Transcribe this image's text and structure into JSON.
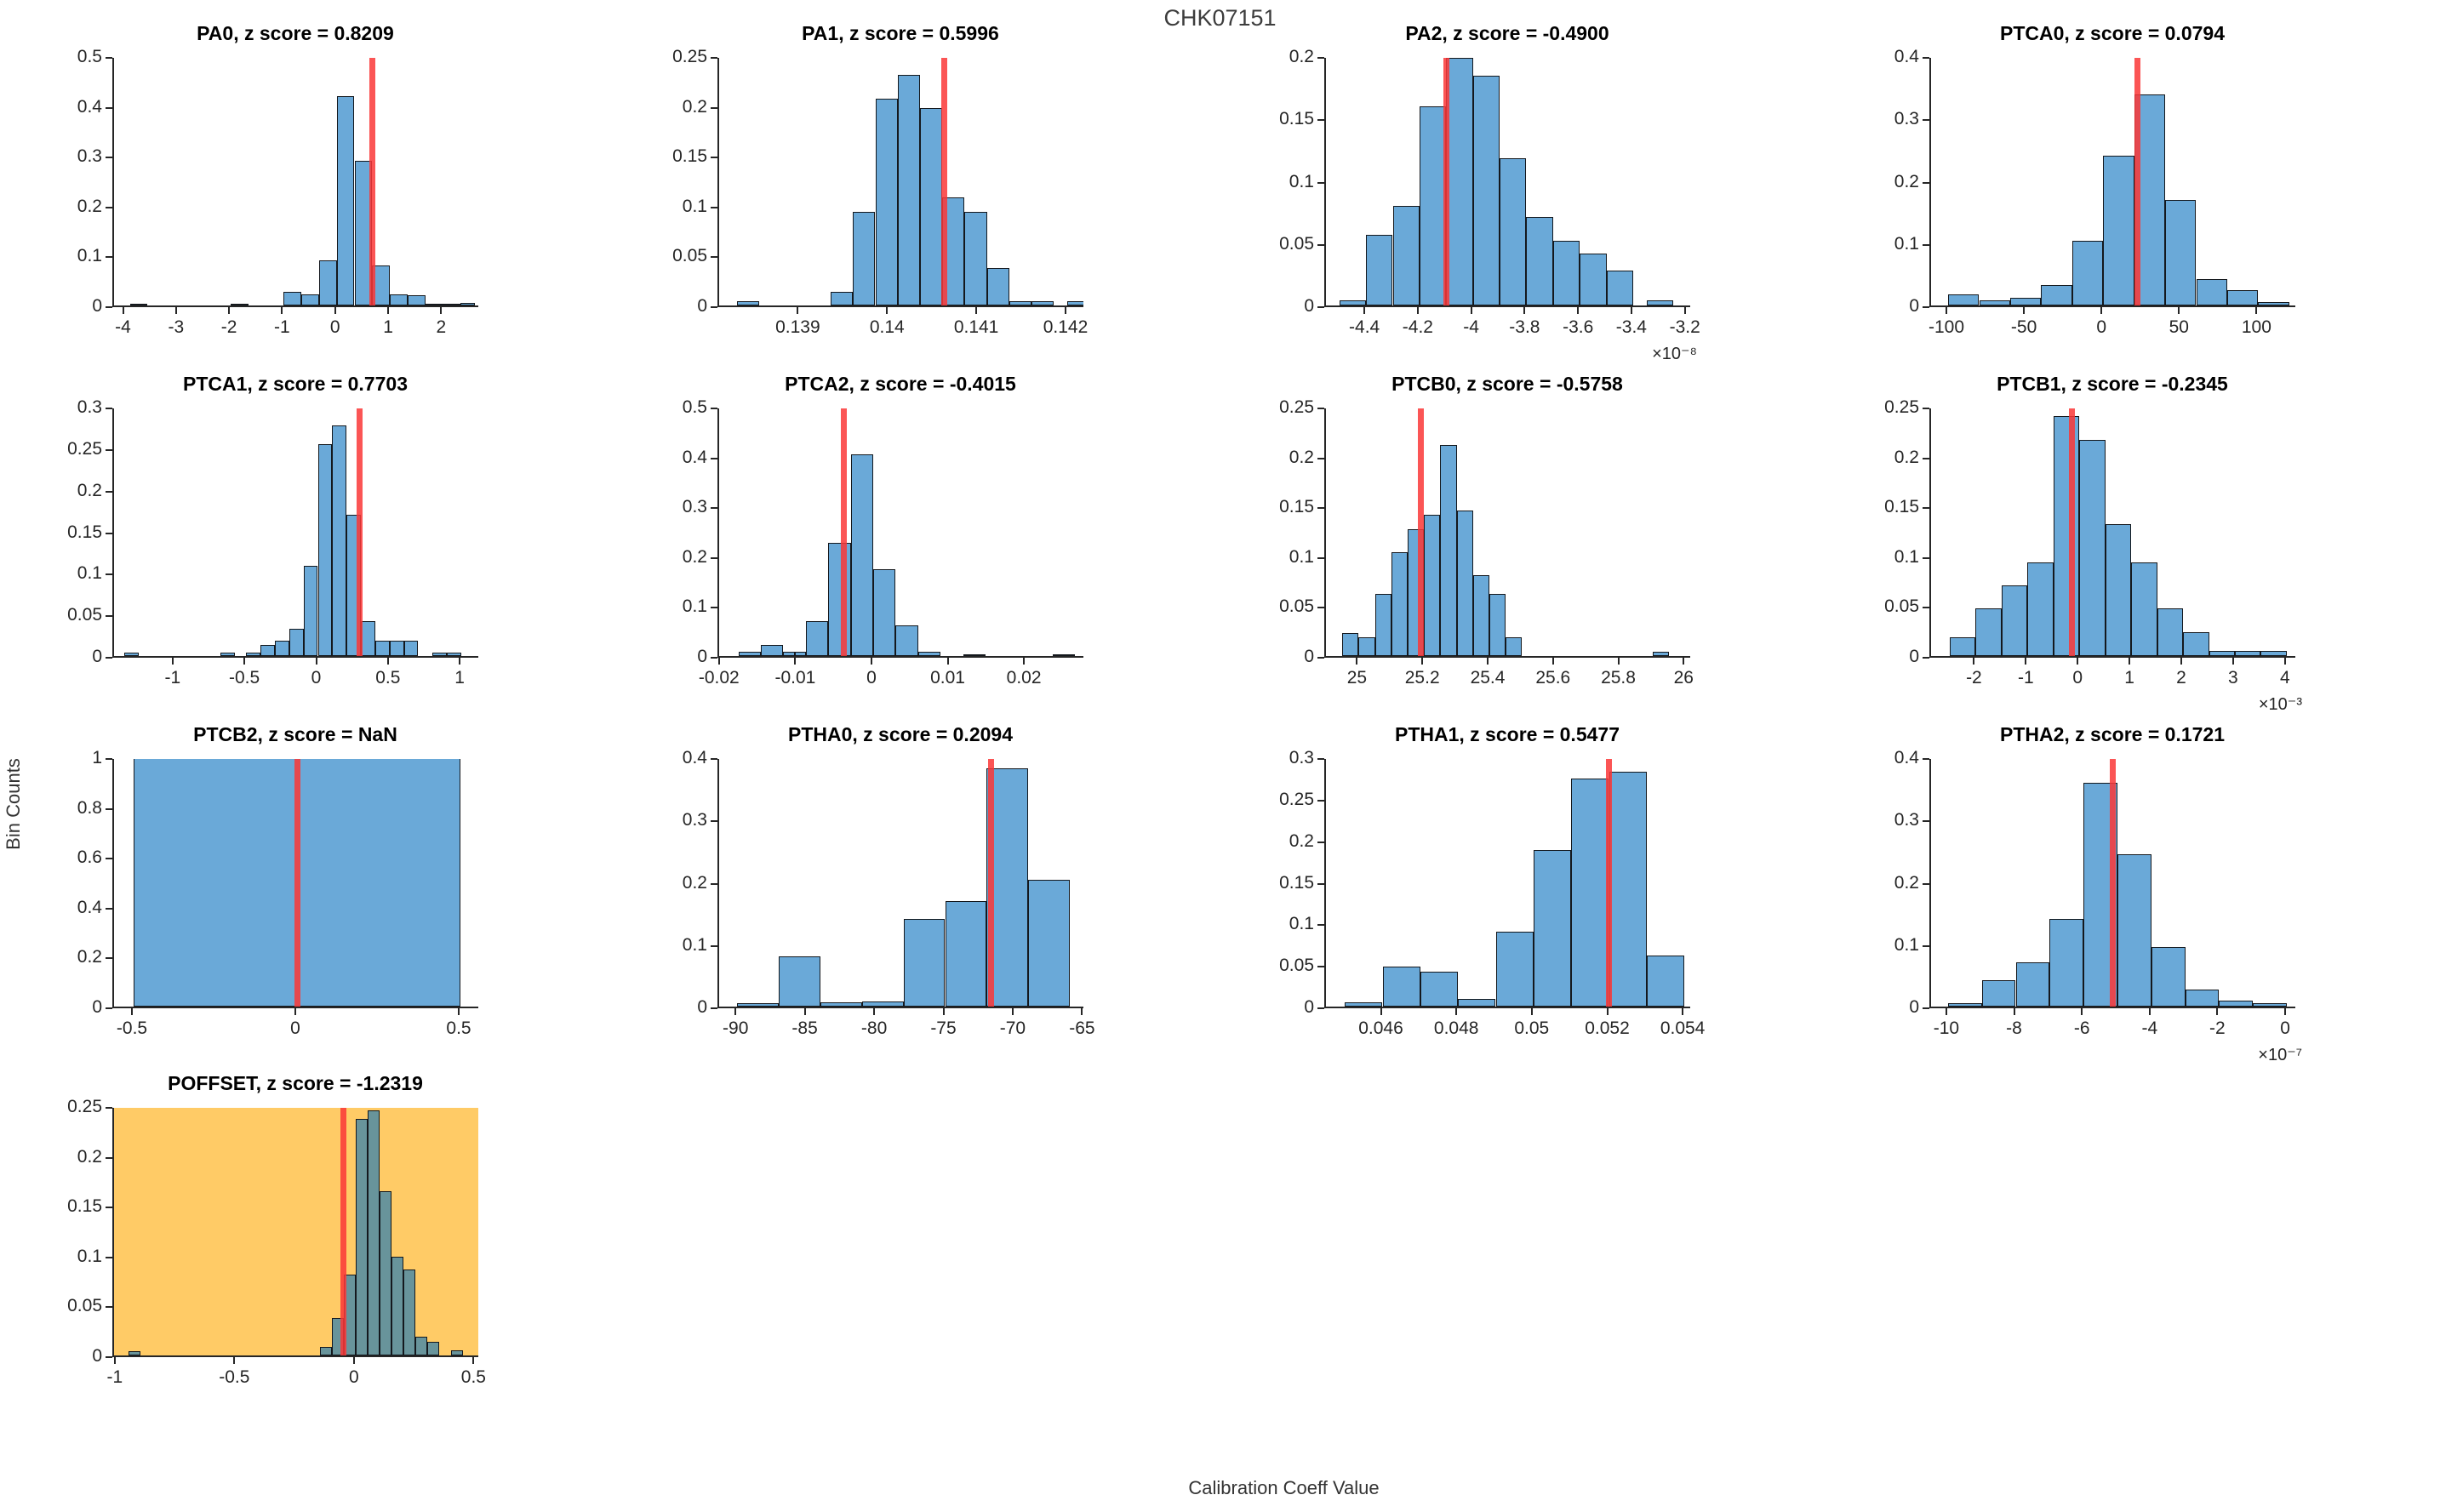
{
  "figure": {
    "title": "CHK07151",
    "ylabel": "Bin Counts",
    "xlabel": "Calibration Coeff Value"
  },
  "style": {
    "bar_color": "#6AA9D8",
    "bar_edge": "#14181d",
    "red_line": "#FA3737",
    "highlight_bg": "#FFCB66",
    "highlight_bar_color": "#68949B",
    "axis_color": "#262626",
    "text_color": "#262626"
  },
  "chart_data": [
    {
      "type": "bar",
      "name": "PA0",
      "title": "PA0, z score = 0.8209",
      "xlim": [
        -4.2,
        2.7
      ],
      "ylim": [
        0,
        0.5
      ],
      "ytick_vals": [
        0,
        0.1,
        0.2,
        0.3,
        0.4,
        0.5
      ],
      "ytick_labels": [
        "0",
        "0.1",
        "0.2",
        "0.3",
        "0.4",
        "0.5"
      ],
      "xtick_vals": [
        -4,
        -3,
        -2,
        -1,
        0,
        1,
        2
      ],
      "xtick_labels": [
        "-4",
        "-3",
        "-2",
        "-1",
        "0",
        "1",
        "2"
      ],
      "x_exponent": "",
      "red_line_x": 0.67,
      "highlight": false,
      "bars": [
        [
          -3.9,
          -3.567,
          0.004
        ],
        [
          -2.0,
          -1.667,
          0.004
        ],
        [
          -1.0,
          -0.667,
          0.027
        ],
        [
          -0.667,
          -0.333,
          0.022
        ],
        [
          -0.333,
          0,
          0.09
        ],
        [
          0,
          0.333,
          0.42
        ],
        [
          0.333,
          0.667,
          0.29
        ],
        [
          0.667,
          1.0,
          0.08
        ],
        [
          1.0,
          1.333,
          0.022
        ],
        [
          1.333,
          1.667,
          0.02
        ],
        [
          1.667,
          2.0,
          0.004
        ],
        [
          2.0,
          2.333,
          0.004
        ],
        [
          2.333,
          2.6,
          0.005
        ]
      ]
    },
    {
      "type": "bar",
      "name": "PA1",
      "title": "PA1, z score = 0.5996",
      "xlim": [
        0.1381,
        0.1422
      ],
      "ylim": [
        0,
        0.25
      ],
      "ytick_vals": [
        0,
        0.05,
        0.1,
        0.15,
        0.2,
        0.25
      ],
      "ytick_labels": [
        "0",
        "0.05",
        "0.1",
        "0.15",
        "0.2",
        "0.25"
      ],
      "xtick_vals": [
        0.139,
        0.14,
        0.141,
        0.142
      ],
      "xtick_labels": [
        "0.139",
        "0.14",
        "0.141",
        "0.142"
      ],
      "x_exponent": "",
      "red_line_x": 0.14062,
      "highlight": false,
      "bars": [
        [
          0.1383,
          0.13855,
          0.004
        ],
        [
          0.13935,
          0.1396,
          0.014
        ],
        [
          0.1396,
          0.13985,
          0.094
        ],
        [
          0.13985,
          0.1401,
          0.207
        ],
        [
          0.1401,
          0.14035,
          0.231
        ],
        [
          0.14035,
          0.1406,
          0.198
        ],
        [
          0.1406,
          0.14085,
          0.108
        ],
        [
          0.14085,
          0.1411,
          0.094
        ],
        [
          0.1411,
          0.14135,
          0.038
        ],
        [
          0.14135,
          0.1416,
          0.004
        ],
        [
          0.1416,
          0.14185,
          0.004
        ],
        [
          0.142,
          0.14225,
          0.004
        ]
      ]
    },
    {
      "type": "bar",
      "name": "PA2",
      "title": "PA2, z score = -0.4900",
      "xlim": [
        -4.55,
        -3.18
      ],
      "ylim": [
        0,
        0.2
      ],
      "ytick_vals": [
        0,
        0.05,
        0.1,
        0.15,
        0.2
      ],
      "ytick_labels": [
        "0",
        "0.05",
        "0.1",
        "0.15",
        "0.2"
      ],
      "xtick_vals": [
        -4.4,
        -4.2,
        -4,
        -3.8,
        -3.6,
        -3.4,
        -3.2
      ],
      "xtick_labels": [
        "-4.4",
        "-4.2",
        "-4",
        "-3.8",
        "-3.6",
        "-3.4",
        "-3.2"
      ],
      "x_exponent": "×10⁻⁸",
      "red_line_x": -4.1,
      "highlight": false,
      "bars": [
        [
          -4.5,
          -4.4,
          0.004
        ],
        [
          -4.4,
          -4.3,
          0.057
        ],
        [
          -4.3,
          -4.2,
          0.08
        ],
        [
          -4.2,
          -4.1,
          0.16
        ],
        [
          -4.1,
          -4.0,
          0.199
        ],
        [
          -4.0,
          -3.9,
          0.184
        ],
        [
          -3.9,
          -3.8,
          0.118
        ],
        [
          -3.8,
          -3.7,
          0.071
        ],
        [
          -3.7,
          -3.6,
          0.052
        ],
        [
          -3.6,
          -3.5,
          0.042
        ],
        [
          -3.5,
          -3.4,
          0.028
        ],
        [
          -3.35,
          -3.25,
          0.004
        ]
      ]
    },
    {
      "type": "bar",
      "name": "PTCA0",
      "title": "PTCA0, z score = 0.0794",
      "xlim": [
        -111,
        125
      ],
      "ylim": [
        0,
        0.4
      ],
      "ytick_vals": [
        0,
        0.1,
        0.2,
        0.3,
        0.4
      ],
      "ytick_labels": [
        "0",
        "0.1",
        "0.2",
        "0.3",
        "0.4"
      ],
      "xtick_vals": [
        -100,
        -50,
        0,
        50,
        100
      ],
      "xtick_labels": [
        "-100",
        "-50",
        "0",
        "50",
        "100"
      ],
      "x_exponent": "",
      "red_line_x": 22,
      "highlight": false,
      "bars": [
        [
          -100,
          -80,
          0.018
        ],
        [
          -80,
          -60,
          0.008
        ],
        [
          -60,
          -40,
          0.013
        ],
        [
          -40,
          -20,
          0.033
        ],
        [
          -20,
          0,
          0.104
        ],
        [
          0,
          20,
          0.24
        ],
        [
          20,
          40,
          0.339
        ],
        [
          40,
          60,
          0.17
        ],
        [
          60,
          80,
          0.043
        ],
        [
          80,
          100,
          0.024
        ],
        [
          100,
          120,
          0.005
        ]
      ]
    },
    {
      "type": "bar",
      "name": "PTCA1",
      "title": "PTCA1, z score = 0.7703",
      "xlim": [
        -1.42,
        1.13
      ],
      "ylim": [
        0,
        0.3
      ],
      "ytick_vals": [
        0,
        0.05,
        0.1,
        0.15,
        0.2,
        0.25,
        0.3
      ],
      "ytick_labels": [
        "0",
        "0.05",
        "0.1",
        "0.15",
        "0.2",
        "0.25",
        "0.3"
      ],
      "xtick_vals": [
        -1,
        -0.5,
        0,
        0.5,
        1
      ],
      "xtick_labels": [
        "-1",
        "-0.5",
        "0",
        "0.5",
        "1"
      ],
      "x_exponent": "",
      "red_line_x": 0.29,
      "highlight": false,
      "bars": [
        [
          -1.35,
          -1.25,
          0.004
        ],
        [
          -0.68,
          -0.58,
          0.004
        ],
        [
          -0.5,
          -0.4,
          0.004
        ],
        [
          -0.4,
          -0.3,
          0.013
        ],
        [
          -0.3,
          -0.2,
          0.018
        ],
        [
          -0.2,
          -0.1,
          0.033
        ],
        [
          -0.1,
          0,
          0.109
        ],
        [
          0,
          0.1,
          0.255
        ],
        [
          0.1,
          0.2,
          0.278
        ],
        [
          0.2,
          0.3,
          0.17
        ],
        [
          0.3,
          0.4,
          0.042
        ],
        [
          0.4,
          0.5,
          0.018
        ],
        [
          0.5,
          0.6,
          0.018
        ],
        [
          0.6,
          0.7,
          0.018
        ],
        [
          0.8,
          0.9,
          0.004
        ],
        [
          0.9,
          1.0,
          0.004
        ]
      ]
    },
    {
      "type": "bar",
      "name": "PTCA2",
      "title": "PTCA2, z score = -0.4015",
      "xlim": [
        -0.0202,
        0.0278
      ],
      "ylim": [
        0,
        0.5
      ],
      "ytick_vals": [
        0,
        0.1,
        0.2,
        0.3,
        0.4,
        0.5
      ],
      "ytick_labels": [
        "0",
        "0.1",
        "0.2",
        "0.3",
        "0.4",
        "0.5"
      ],
      "xtick_vals": [
        -0.02,
        -0.01,
        0,
        0.01,
        0.02
      ],
      "xtick_labels": [
        "-0.02",
        "-0.01",
        "0",
        "0.01",
        "0.02"
      ],
      "x_exponent": "",
      "red_line_x": -0.0038,
      "highlight": false,
      "bars": [
        [
          -0.0176,
          -0.0147,
          0.008
        ],
        [
          -0.0147,
          -0.0118,
          0.022
        ],
        [
          -0.0118,
          -0.0103,
          0.008
        ],
        [
          -0.0103,
          -0.0088,
          0.008
        ],
        [
          -0.0088,
          -0.0059,
          0.07
        ],
        [
          -0.0059,
          -0.0029,
          0.227
        ],
        [
          -0.0029,
          0,
          0.405
        ],
        [
          0,
          0.0029,
          0.174
        ],
        [
          0.0029,
          0.0059,
          0.062
        ],
        [
          0.0059,
          0.0088,
          0.008
        ],
        [
          0.0118,
          0.0147,
          0.004
        ],
        [
          0.0235,
          0.0264,
          0.004
        ]
      ]
    },
    {
      "type": "bar",
      "name": "PTCB0",
      "title": "PTCB0, z score = -0.5758",
      "xlim": [
        24.9,
        26.02
      ],
      "ylim": [
        0,
        0.25
      ],
      "ytick_vals": [
        0,
        0.05,
        0.1,
        0.15,
        0.2,
        0.25
      ],
      "ytick_labels": [
        "0",
        "0.05",
        "0.1",
        "0.15",
        "0.2",
        "0.25"
      ],
      "xtick_vals": [
        25,
        25.2,
        25.4,
        25.6,
        25.8,
        26
      ],
      "xtick_labels": [
        "25",
        "25.2",
        "25.4",
        "25.6",
        "25.8",
        "26"
      ],
      "x_exponent": "",
      "red_line_x": 25.19,
      "highlight": false,
      "bars": [
        [
          24.95,
          25.0,
          0.023
        ],
        [
          25.0,
          25.05,
          0.019
        ],
        [
          25.05,
          25.1,
          0.062
        ],
        [
          25.1,
          25.15,
          0.104
        ],
        [
          25.15,
          25.2,
          0.127
        ],
        [
          25.2,
          25.25,
          0.142
        ],
        [
          25.25,
          25.3,
          0.212
        ],
        [
          25.3,
          25.35,
          0.146
        ],
        [
          25.35,
          25.4,
          0.081
        ],
        [
          25.4,
          25.45,
          0.062
        ],
        [
          25.45,
          25.5,
          0.019
        ],
        [
          25.9,
          25.95,
          0.004
        ]
      ]
    },
    {
      "type": "bar",
      "name": "PTCB1",
      "title": "PTCB1, z score = -0.2345",
      "xlim": [
        -2.86,
        4.2
      ],
      "ylim": [
        0,
        0.25
      ],
      "ytick_vals": [
        0,
        0.05,
        0.1,
        0.15,
        0.2,
        0.25
      ],
      "ytick_labels": [
        "0",
        "0.05",
        "0.1",
        "0.15",
        "0.2",
        "0.25"
      ],
      "xtick_vals": [
        -2,
        -1,
        0,
        1,
        2,
        3,
        4
      ],
      "xtick_labels": [
        "-2",
        "-1",
        "0",
        "1",
        "2",
        "3",
        "4"
      ],
      "x_exponent": "×10⁻³",
      "red_line_x": -0.15,
      "highlight": false,
      "bars": [
        [
          -2.5,
          -2,
          0.019
        ],
        [
          -2,
          -1.5,
          0.048
        ],
        [
          -1.5,
          -1,
          0.071
        ],
        [
          -1,
          -0.5,
          0.094
        ],
        [
          -0.5,
          0,
          0.241
        ],
        [
          0,
          0.5,
          0.217
        ],
        [
          0.5,
          1,
          0.132
        ],
        [
          1,
          1.5,
          0.094
        ],
        [
          1.5,
          2,
          0.048
        ],
        [
          2,
          2.5,
          0.024
        ],
        [
          2.5,
          3,
          0.005
        ],
        [
          3,
          3.5,
          0.005
        ],
        [
          3.5,
          4,
          0.005
        ]
      ]
    },
    {
      "type": "bar",
      "name": "PTCB2",
      "title": "PTCB2, z score = NaN",
      "xlim": [
        -0.56,
        0.56
      ],
      "ylim": [
        0,
        1
      ],
      "ytick_vals": [
        0,
        0.2,
        0.4,
        0.6,
        0.8,
        1
      ],
      "ytick_labels": [
        "0",
        "0.2",
        "0.4",
        "0.6",
        "0.8",
        "1"
      ],
      "xtick_vals": [
        -0.5,
        0,
        0.5
      ],
      "xtick_labels": [
        "-0.5",
        "0",
        "0.5"
      ],
      "x_exponent": "",
      "red_line_x": 0,
      "highlight": false,
      "bars": [
        [
          -0.5,
          0.5,
          1
        ]
      ]
    },
    {
      "type": "bar",
      "name": "PTHA0",
      "title": "PTHA0, z score = 0.2094",
      "xlim": [
        -91.3,
        -64.9
      ],
      "ylim": [
        0,
        0.4
      ],
      "ytick_vals": [
        0,
        0.1,
        0.2,
        0.3,
        0.4
      ],
      "ytick_labels": [
        "0",
        "0.1",
        "0.2",
        "0.3",
        "0.4"
      ],
      "xtick_vals": [
        -90,
        -85,
        -80,
        -75,
        -70,
        -65
      ],
      "xtick_labels": [
        "-90",
        "-85",
        "-80",
        "-75",
        "-70",
        "-65"
      ],
      "x_exponent": "",
      "red_line_x": -71.7,
      "highlight": false,
      "bars": [
        [
          -90,
          -87,
          0.005
        ],
        [
          -87,
          -84,
          0.081
        ],
        [
          -84,
          -81,
          0.007
        ],
        [
          -81,
          -78,
          0.008
        ],
        [
          -78,
          -75,
          0.141
        ],
        [
          -75,
          -72,
          0.17
        ],
        [
          -72,
          -69,
          0.383
        ],
        [
          -69,
          -66,
          0.203
        ]
      ]
    },
    {
      "type": "bar",
      "name": "PTHA1",
      "title": "PTHA1, z score = 0.5477",
      "xlim": [
        0.0445,
        0.0542
      ],
      "ylim": [
        0,
        0.3
      ],
      "ytick_vals": [
        0,
        0.05,
        0.1,
        0.15,
        0.2,
        0.25,
        0.3
      ],
      "ytick_labels": [
        "0",
        "0.05",
        "0.1",
        "0.15",
        "0.2",
        "0.25",
        "0.3"
      ],
      "xtick_vals": [
        0.046,
        0.048,
        0.05,
        0.052,
        0.054
      ],
      "xtick_labels": [
        "0.046",
        "0.048",
        "0.05",
        "0.052",
        "0.054"
      ],
      "x_exponent": "",
      "red_line_x": 0.052,
      "highlight": false,
      "bars": [
        [
          0.045,
          0.046,
          0.005
        ],
        [
          0.046,
          0.047,
          0.048
        ],
        [
          0.047,
          0.048,
          0.042
        ],
        [
          0.048,
          0.049,
          0.009
        ],
        [
          0.049,
          0.05,
          0.09
        ],
        [
          0.05,
          0.051,
          0.188
        ],
        [
          0.051,
          0.052,
          0.274
        ],
        [
          0.052,
          0.053,
          0.283
        ],
        [
          0.053,
          0.054,
          0.061
        ]
      ]
    },
    {
      "type": "bar",
      "name": "PTHA2",
      "title": "PTHA2, z score = 0.1721",
      "xlim": [
        -10.5,
        0.3
      ],
      "ylim": [
        0,
        0.4
      ],
      "ytick_vals": [
        0,
        0.1,
        0.2,
        0.3,
        0.4
      ],
      "ytick_labels": [
        "0",
        "0.1",
        "0.2",
        "0.3",
        "0.4"
      ],
      "xtick_vals": [
        -10,
        -8,
        -6,
        -4,
        -2,
        0
      ],
      "xtick_labels": [
        "-10",
        "-8",
        "-6",
        "-4",
        "-2",
        "0"
      ],
      "x_exponent": "×10⁻⁷",
      "red_line_x": -5.15,
      "highlight": false,
      "bars": [
        [
          -10,
          -9,
          0.005
        ],
        [
          -9,
          -8,
          0.043
        ],
        [
          -8,
          -7,
          0.071
        ],
        [
          -7,
          -6,
          0.141
        ],
        [
          -6,
          -5,
          0.359
        ],
        [
          -5,
          -4,
          0.245
        ],
        [
          -4,
          -3,
          0.095
        ],
        [
          -3,
          -2,
          0.028
        ],
        [
          -2,
          -1,
          0.009
        ],
        [
          -1,
          0,
          0.005
        ]
      ]
    },
    {
      "type": "bar",
      "name": "POFFSET",
      "title": "POFFSET, z score = -1.2319",
      "xlim": [
        -1.01,
        0.52
      ],
      "ylim": [
        0,
        0.25
      ],
      "ytick_vals": [
        0,
        0.05,
        0.1,
        0.15,
        0.2,
        0.25
      ],
      "ytick_labels": [
        "0",
        "0.05",
        "0.1",
        "0.15",
        "0.2",
        "0.25"
      ],
      "xtick_vals": [
        -1,
        -0.5,
        0,
        0.5
      ],
      "xtick_labels": [
        "-1",
        "-0.5",
        "0",
        "0.5"
      ],
      "x_exponent": "",
      "red_line_x": -0.05,
      "highlight": true,
      "bars": [
        [
          -0.95,
          -0.9,
          0.004
        ],
        [
          -0.15,
          -0.1,
          0.009
        ],
        [
          -0.1,
          -0.05,
          0.038
        ],
        [
          -0.05,
          0,
          0.081
        ],
        [
          0,
          0.05,
          0.237
        ],
        [
          0.05,
          0.1,
          0.246
        ],
        [
          0.1,
          0.15,
          0.165
        ],
        [
          0.15,
          0.2,
          0.099
        ],
        [
          0.2,
          0.25,
          0.086
        ],
        [
          0.25,
          0.3,
          0.019
        ],
        [
          0.3,
          0.35,
          0.014
        ],
        [
          0.4,
          0.45,
          0.005
        ]
      ]
    }
  ]
}
